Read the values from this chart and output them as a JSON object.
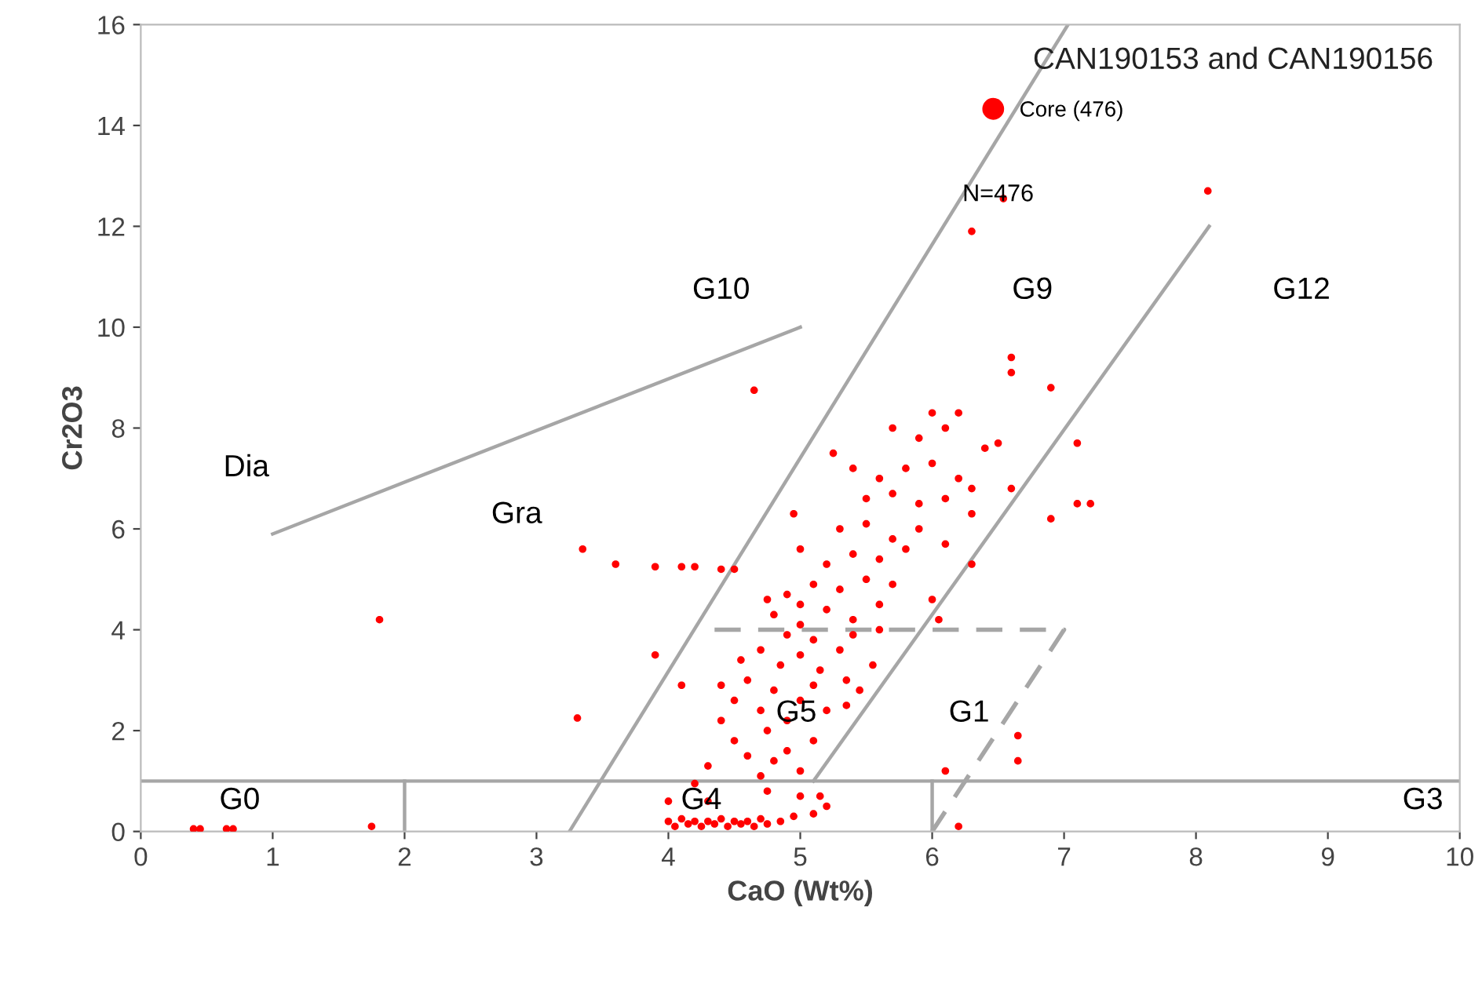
{
  "chart_data": {
    "type": "scatter",
    "title": "CAN190153 and CAN190156",
    "xlabel": "CaO (Wt%)",
    "ylabel": "Cr2O3",
    "xlim": [
      0,
      10
    ],
    "ylim": [
      0,
      16
    ],
    "xticks": [
      0,
      1,
      2,
      3,
      4,
      5,
      6,
      7,
      8,
      9,
      10
    ],
    "yticks": [
      0,
      2,
      4,
      6,
      8,
      10,
      12,
      14,
      16
    ],
    "grid": false,
    "legend": "top right",
    "series": [
      {
        "name": "Core (476)",
        "marker": "circle",
        "color": "#ff0000",
        "x": [
          0.4,
          0.45,
          0.65,
          0.7,
          1.75,
          1.81,
          3.31,
          3.35,
          3.6,
          3.9,
          4.1,
          4.2,
          4.4,
          4.5,
          4.65,
          3.9,
          4.1,
          6.65,
          6.1,
          6.2,
          6.65,
          6.3,
          6.54,
          8.09,
          7.1,
          7.1,
          7.2,
          6.9,
          6.6,
          6.6,
          6.9,
          6.3,
          4.0,
          4.05,
          4.1,
          4.15,
          4.2,
          4.25,
          4.3,
          4.35,
          4.4,
          4.45,
          4.5,
          4.55,
          4.6,
          4.65,
          4.7,
          4.75,
          4.85,
          4.95,
          5.1,
          5.2,
          4.0,
          4.3,
          4.75,
          5.0,
          5.15,
          4.2,
          4.3,
          4.5,
          4.4,
          4.6,
          4.7,
          4.8,
          4.9,
          5.0,
          5.1,
          4.5,
          4.6,
          4.7,
          4.8,
          4.9,
          5.0,
          5.1,
          4.55,
          4.7,
          4.85,
          5.0,
          5.15,
          5.3,
          4.9,
          5.1,
          5.35,
          4.4,
          4.75,
          5.2,
          5.45,
          4.8,
          5.0,
          5.2,
          5.4,
          5.6,
          4.9,
          5.1,
          5.3,
          5.5,
          5.7,
          5.2,
          5.4,
          5.6,
          5.0,
          5.8,
          5.3,
          5.5,
          5.7,
          4.95,
          5.9,
          5.0,
          5.6,
          4.75,
          5.4,
          5.5,
          5.7,
          5.9,
          6.1,
          5.6,
          5.8,
          6.0,
          6.2,
          6.3,
          5.4,
          5.9,
          6.1,
          6.2,
          6.0,
          5.7,
          6.4,
          6.5,
          6.3,
          6.6,
          5.25,
          6.1,
          6.0,
          6.05,
          5.55,
          5.35
        ],
        "values": [
          0.05,
          0.05,
          0.05,
          0.05,
          0.1,
          4.2,
          2.25,
          5.6,
          5.3,
          5.25,
          5.25,
          5.25,
          5.2,
          5.2,
          8.75,
          3.5,
          2.9,
          1.9,
          1.2,
          0.1,
          1.4,
          11.9,
          12.55,
          12.7,
          7.7,
          6.5,
          6.5,
          6.2,
          9.4,
          9.1,
          8.8,
          5.3,
          0.2,
          0.1,
          0.25,
          0.15,
          0.2,
          0.1,
          0.2,
          0.15,
          0.25,
          0.1,
          0.2,
          0.15,
          0.2,
          0.1,
          0.25,
          0.15,
          0.2,
          0.3,
          0.35,
          0.5,
          0.6,
          0.6,
          0.8,
          0.7,
          0.7,
          0.95,
          1.3,
          1.8,
          2.2,
          1.5,
          1.1,
          1.4,
          1.6,
          1.2,
          1.8,
          2.6,
          3.0,
          2.4,
          2.8,
          2.2,
          2.6,
          2.9,
          3.4,
          3.6,
          3.3,
          3.5,
          3.2,
          3.6,
          3.9,
          3.8,
          3.0,
          2.9,
          2.0,
          2.4,
          2.8,
          4.3,
          4.1,
          4.4,
          4.2,
          4.5,
          4.7,
          4.9,
          4.8,
          5.0,
          4.9,
          5.3,
          5.5,
          5.4,
          5.6,
          5.6,
          6.0,
          6.1,
          5.8,
          6.3,
          6.0,
          4.5,
          4.0,
          4.6,
          3.9,
          6.6,
          6.7,
          6.5,
          6.6,
          7.0,
          7.2,
          7.3,
          7.0,
          6.8,
          7.2,
          7.8,
          8.0,
          8.3,
          8.3,
          8.0,
          7.6,
          7.7,
          6.3,
          6.8,
          7.5,
          5.7,
          4.6,
          4.2,
          3.3,
          2.5
        ]
      },
      {
        "type": "line",
        "color": "#a6a6a6",
        "line_style": "solid",
        "x": [
          1,
          5
        ],
        "values": [
          5.9,
          10
        ]
      },
      {
        "type": "line",
        "color": "#a6a6a6",
        "line_style": "solid",
        "x": [
          3.25,
          7.03
        ],
        "values": [
          0,
          16
        ]
      },
      {
        "type": "line",
        "color": "#a6a6a6",
        "line_style": "solid",
        "x": [
          5.1,
          8.1
        ],
        "values": [
          1,
          12
        ]
      },
      {
        "type": "line",
        "color": "#a6a6a6",
        "line_style": "solid",
        "x": [
          0,
          10
        ],
        "values": [
          1,
          1
        ]
      },
      {
        "type": "line",
        "color": "#a6a6a6",
        "line_style": "solid",
        "x": [
          2,
          2
        ],
        "values": [
          0,
          1
        ]
      },
      {
        "type": "line",
        "color": "#a6a6a6",
        "line_style": "solid",
        "x": [
          6,
          6
        ],
        "values": [
          0,
          1
        ]
      },
      {
        "type": "line",
        "color": "#a6a6a6",
        "line_style": "dashed",
        "x": [
          4.35,
          7,
          6
        ],
        "values": [
          4,
          4,
          0
        ]
      }
    ],
    "annotations": [
      {
        "text": "N=476",
        "x": 6.5,
        "y": 12.4
      },
      "G10",
      "G9",
      "G12",
      "Dia",
      "Gra",
      "G5",
      "G1",
      "G0",
      "G4",
      "G3"
    ]
  }
}
